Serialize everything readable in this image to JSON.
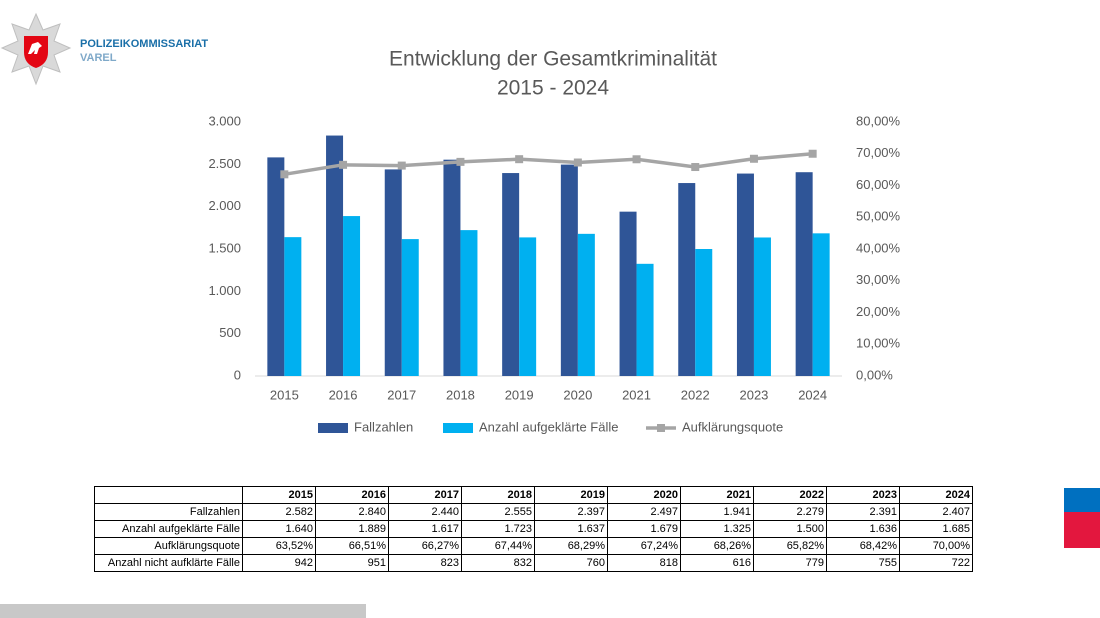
{
  "header": {
    "org": "POLIZEIKOMMISSARIAT",
    "place": "VAREL"
  },
  "chart_data": {
    "type": "bar",
    "title": "Entwicklung der Gesamtkriminalität",
    "subtitle": "2015 - 2024",
    "categories": [
      "2015",
      "2016",
      "2017",
      "2018",
      "2019",
      "2020",
      "2021",
      "2022",
      "2023",
      "2024"
    ],
    "series": [
      {
        "name": "Fallzahlen",
        "color": "#2f5597",
        "type": "bar",
        "values": [
          2582,
          2840,
          2440,
          2555,
          2397,
          2497,
          1941,
          2279,
          2391,
          2407
        ]
      },
      {
        "name": "Anzahl aufgeklärte Fälle",
        "color": "#00b0f0",
        "type": "bar",
        "values": [
          1640,
          1889,
          1617,
          1723,
          1637,
          1679,
          1325,
          1500,
          1636,
          1685
        ]
      },
      {
        "name": "Aufklärungsquote",
        "color": "#a5a5a5",
        "type": "line",
        "axis": "y2",
        "values": [
          63.52,
          66.51,
          66.27,
          67.44,
          68.29,
          67.24,
          68.26,
          65.82,
          68.42,
          70.0
        ]
      }
    ],
    "ylim": [
      0,
      3000
    ],
    "yticks": [
      0,
      {
        "value": 500,
        "label": "500"
      },
      {
        "value": 1000,
        "label": "1.000"
      },
      {
        "value": 1500,
        "label": "1.500"
      },
      {
        "value": 2000,
        "label": "2.000"
      },
      {
        "value": 2500,
        "label": "2.500"
      },
      {
        "value": 3000,
        "label": "3.000"
      }
    ],
    "y2lim": [
      0,
      80
    ],
    "y2ticks": [
      {
        "value": 0,
        "label": "0,00%"
      },
      {
        "value": 10,
        "label": "10,00%"
      },
      {
        "value": 20,
        "label": "20,00%"
      },
      {
        "value": 30,
        "label": "30,00%"
      },
      {
        "value": 40,
        "label": "40,00%"
      },
      {
        "value": 50,
        "label": "50,00%"
      },
      {
        "value": 60,
        "label": "60,00%"
      },
      {
        "value": 70,
        "label": "70,00%"
      },
      {
        "value": 80,
        "label": "80,00%"
      }
    ],
    "grid": false,
    "legend": "bottom"
  },
  "table": {
    "columns": [
      "2015",
      "2016",
      "2017",
      "2018",
      "2019",
      "2020",
      "2021",
      "2022",
      "2023",
      "2024"
    ],
    "rows": [
      [
        "Fallzahlen",
        "2.582",
        "2.840",
        "2.440",
        "2.555",
        "2.397",
        "2.497",
        "1.941",
        "2.279",
        "2.391",
        "2.407"
      ],
      [
        "Anzahl aufgeklärte Fälle",
        "1.640",
        "1.889",
        "1.617",
        "1.723",
        "1.637",
        "1.679",
        "1.325",
        "1.500",
        "1.636",
        "1.685"
      ],
      [
        "Aufklärungsquote",
        "63,52%",
        "66,51%",
        "66,27%",
        "67,44%",
        "68,29%",
        "67,24%",
        "68,26%",
        "65,82%",
        "68,42%",
        "70,00%"
      ],
      [
        "Anzahl nicht aufklärte Fälle",
        "942",
        "951",
        "823",
        "832",
        "760",
        "818",
        "616",
        "779",
        "755",
        "722"
      ]
    ]
  }
}
